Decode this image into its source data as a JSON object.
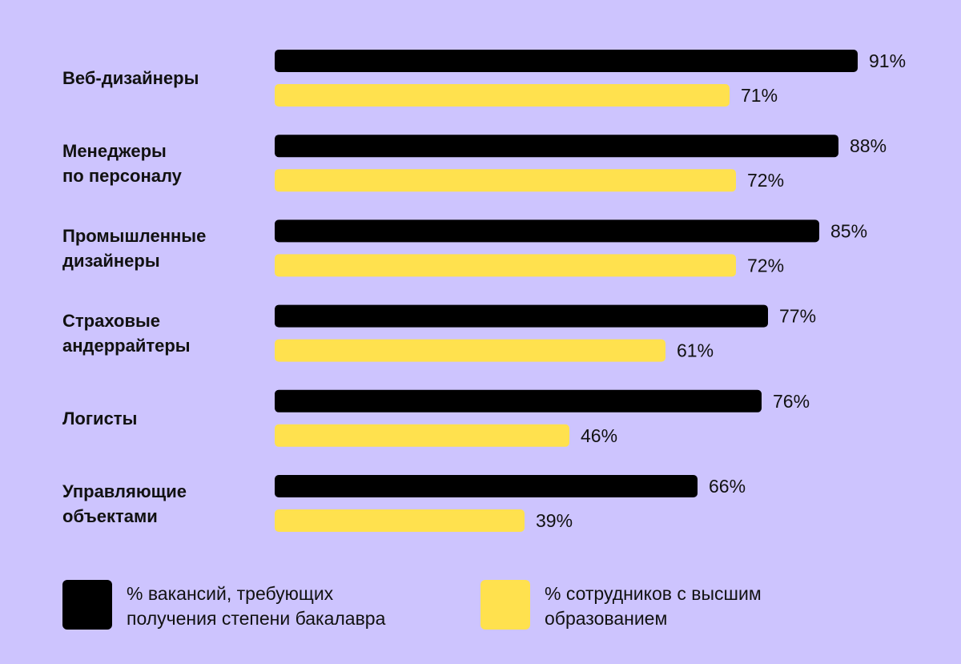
{
  "colors": {
    "background": "#cdc4fe",
    "series_dark": "#000000",
    "series_yellow": "#ffe14e",
    "text": "#111111"
  },
  "chart_data": {
    "type": "bar",
    "orientation": "horizontal",
    "categories": [
      "Веб-дизайнеры",
      "Менеджеры\nпо персоналу",
      "Промышленные\nдизайнеры",
      "Страховые\nандеррайтеры",
      "Логисты",
      "Управляющие\nобъектами"
    ],
    "series": [
      {
        "name": "% вакансий, требующих\nполучения степени бакалавра",
        "values": [
          91,
          88,
          85,
          77,
          76,
          66
        ],
        "labels": [
          "91%",
          "88%",
          "85%",
          "77%",
          "76%",
          "66%"
        ]
      },
      {
        "name": "% сотрудников с высшим\nобразованием",
        "values": [
          71,
          72,
          72,
          61,
          46,
          39
        ],
        "labels": [
          "71%",
          "72%",
          "72%",
          "61%",
          "46%",
          "39%"
        ]
      }
    ],
    "xlim": [
      0,
      100
    ],
    "grid": false,
    "legend_position": "bottom"
  }
}
